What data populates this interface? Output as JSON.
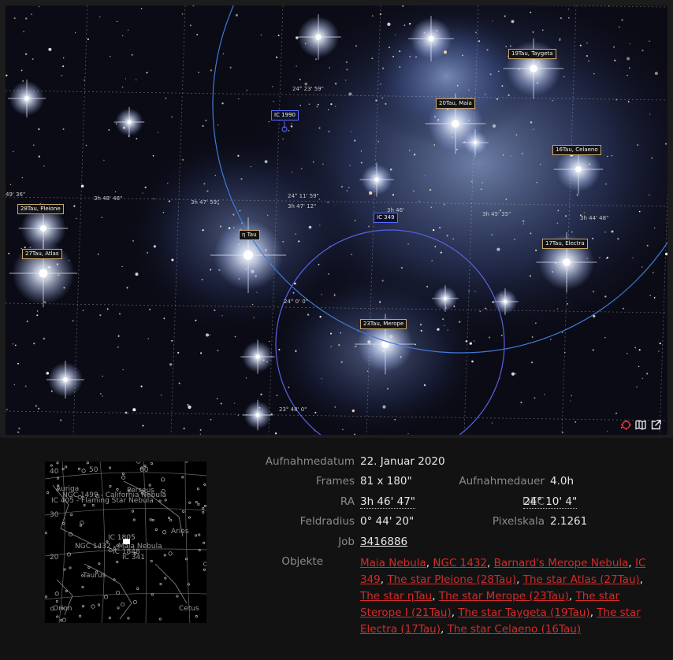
{
  "image_labels": {
    "star_19tau": "19Tau, Taygeta",
    "star_20tau": "20Tau, Maia",
    "star_16tau": "16Tau, Celaeno",
    "star_28tau": "28Tau, Pleione",
    "star_27tau": "27Tau, Atlas",
    "star_eta": "η Tau",
    "star_17tau": "17Tau, Electra",
    "star_23tau": "23Tau, Merope",
    "ic1990": "IC 1990",
    "ic349": "IC 349"
  },
  "coords": {
    "dec_2423": "24° 23' 59\"",
    "dec_2411": "24° 11' 59\"",
    "dec_2400": "24° 0' 0\"",
    "dec_2348": "23° 48' 0\"",
    "ra_4936": "49' 36\"",
    "ra_34848": "3h 48' 48\"",
    "ra_34759": "3h 47' 59\"",
    "ra_34712": "3h 47' 12\"",
    "ra_346": "3h 46'",
    "ra_34535": "3h 45' 35\"",
    "ra_34448": "3h 44' 48\""
  },
  "toolbar": {
    "target_icon": "crosshair-icon",
    "map_icon": "map-icon",
    "external_icon": "external-link-icon"
  },
  "minimap": {
    "labels": {
      "n40": "40",
      "n50": "50",
      "n60": "60",
      "n30": "30",
      "n20": "20",
      "auriga": "Auriga",
      "perseus": "Perseus",
      "ngc1499": "NGC 1499 - California Nebula",
      "ic405": "IC 405 - Flaming Star Nebula",
      "aries": "Aries",
      "ic1805": "IC 1805",
      "ngc1432": "NGC 1432 - Maia Nebula",
      "ic1848": "IC 1848",
      "ic341": "IC 341",
      "taurus": "Taurus",
      "orion": "Orion",
      "cetus": "Cetus"
    }
  },
  "details": {
    "date_label": "Aufnahmedatum",
    "date_value": "22. Januar 2020",
    "frames_label": "Frames",
    "frames_value": "81 x 180\"",
    "duration_label": "Aufnahmedauer",
    "duration_value": "4.0h",
    "ra_label": "RA",
    "ra_value": "3h 46' 47\"",
    "dec_label": "DEC",
    "dec_value": "24° 10' 4\"",
    "radius_label": "Feldradius",
    "radius_value": "0° 44' 20\"",
    "scale_label": "Pixelskala",
    "scale_value": "2.1261",
    "job_label": "Job",
    "job_value": "3416886",
    "objects_label": "Objekte",
    "objects": [
      "Maia Nebula",
      "NGC 1432",
      "Barnard's Merope Nebula",
      "IC 349",
      "The star Pleione (28Tau)",
      "The star Atlas (27Tau)",
      "The star ηTau",
      "The star Merope (23Tau)",
      "The star Sterope I (21Tau)",
      "The star Taygeta (19Tau)",
      "The star Electra (17Tau)",
      "The star Celaeno (16Tau)"
    ]
  },
  "colors": {
    "link": "#d42a2a",
    "label_border": "#c9a66b",
    "ic_border": "#5a6cff"
  }
}
